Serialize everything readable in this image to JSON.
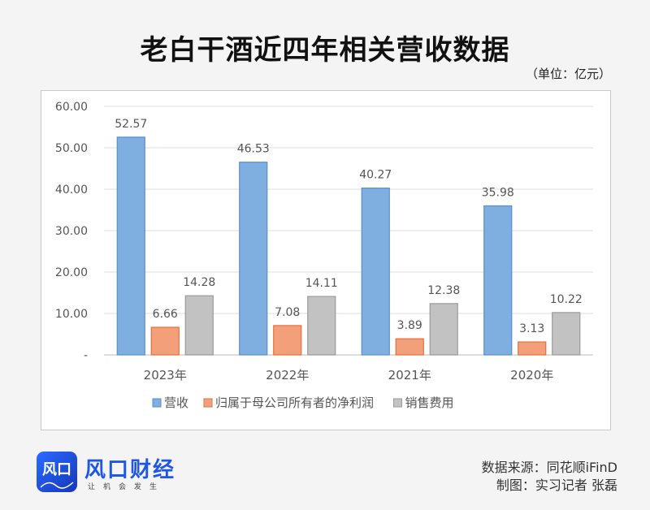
{
  "page": {
    "title": "老白干酒近四年相关营收数据",
    "unit": "（单位：亿元）",
    "source": "数据来源：同花顺iFinD",
    "author": "制图：实习记者 张磊",
    "logo": {
      "text": "风口",
      "name": "风口财经",
      "slogan": "让机会发生"
    }
  },
  "chart_data": {
    "type": "bar",
    "categories": [
      "2023年",
      "2022年",
      "2021年",
      "2020年"
    ],
    "series": [
      {
        "name": "营收",
        "values": [
          52.57,
          46.53,
          40.27,
          35.98
        ],
        "color": "#7faee0",
        "stroke": "#5a8fcc"
      },
      {
        "name": "归属于母公司所有者的净利润",
        "values": [
          6.66,
          7.08,
          3.89,
          3.13
        ],
        "color": "#f3a07a",
        "stroke": "#e07040"
      },
      {
        "name": "销售费用",
        "values": [
          14.28,
          14.11,
          12.38,
          10.22
        ],
        "color": "#c2c2c2",
        "stroke": "#9a9a9a"
      }
    ],
    "yticks": [
      "-",
      "10.00",
      "20.00",
      "30.00",
      "40.00",
      "50.00",
      "60.00"
    ],
    "ylim": [
      0,
      60
    ],
    "legend_position": "bottom",
    "grid": true
  }
}
